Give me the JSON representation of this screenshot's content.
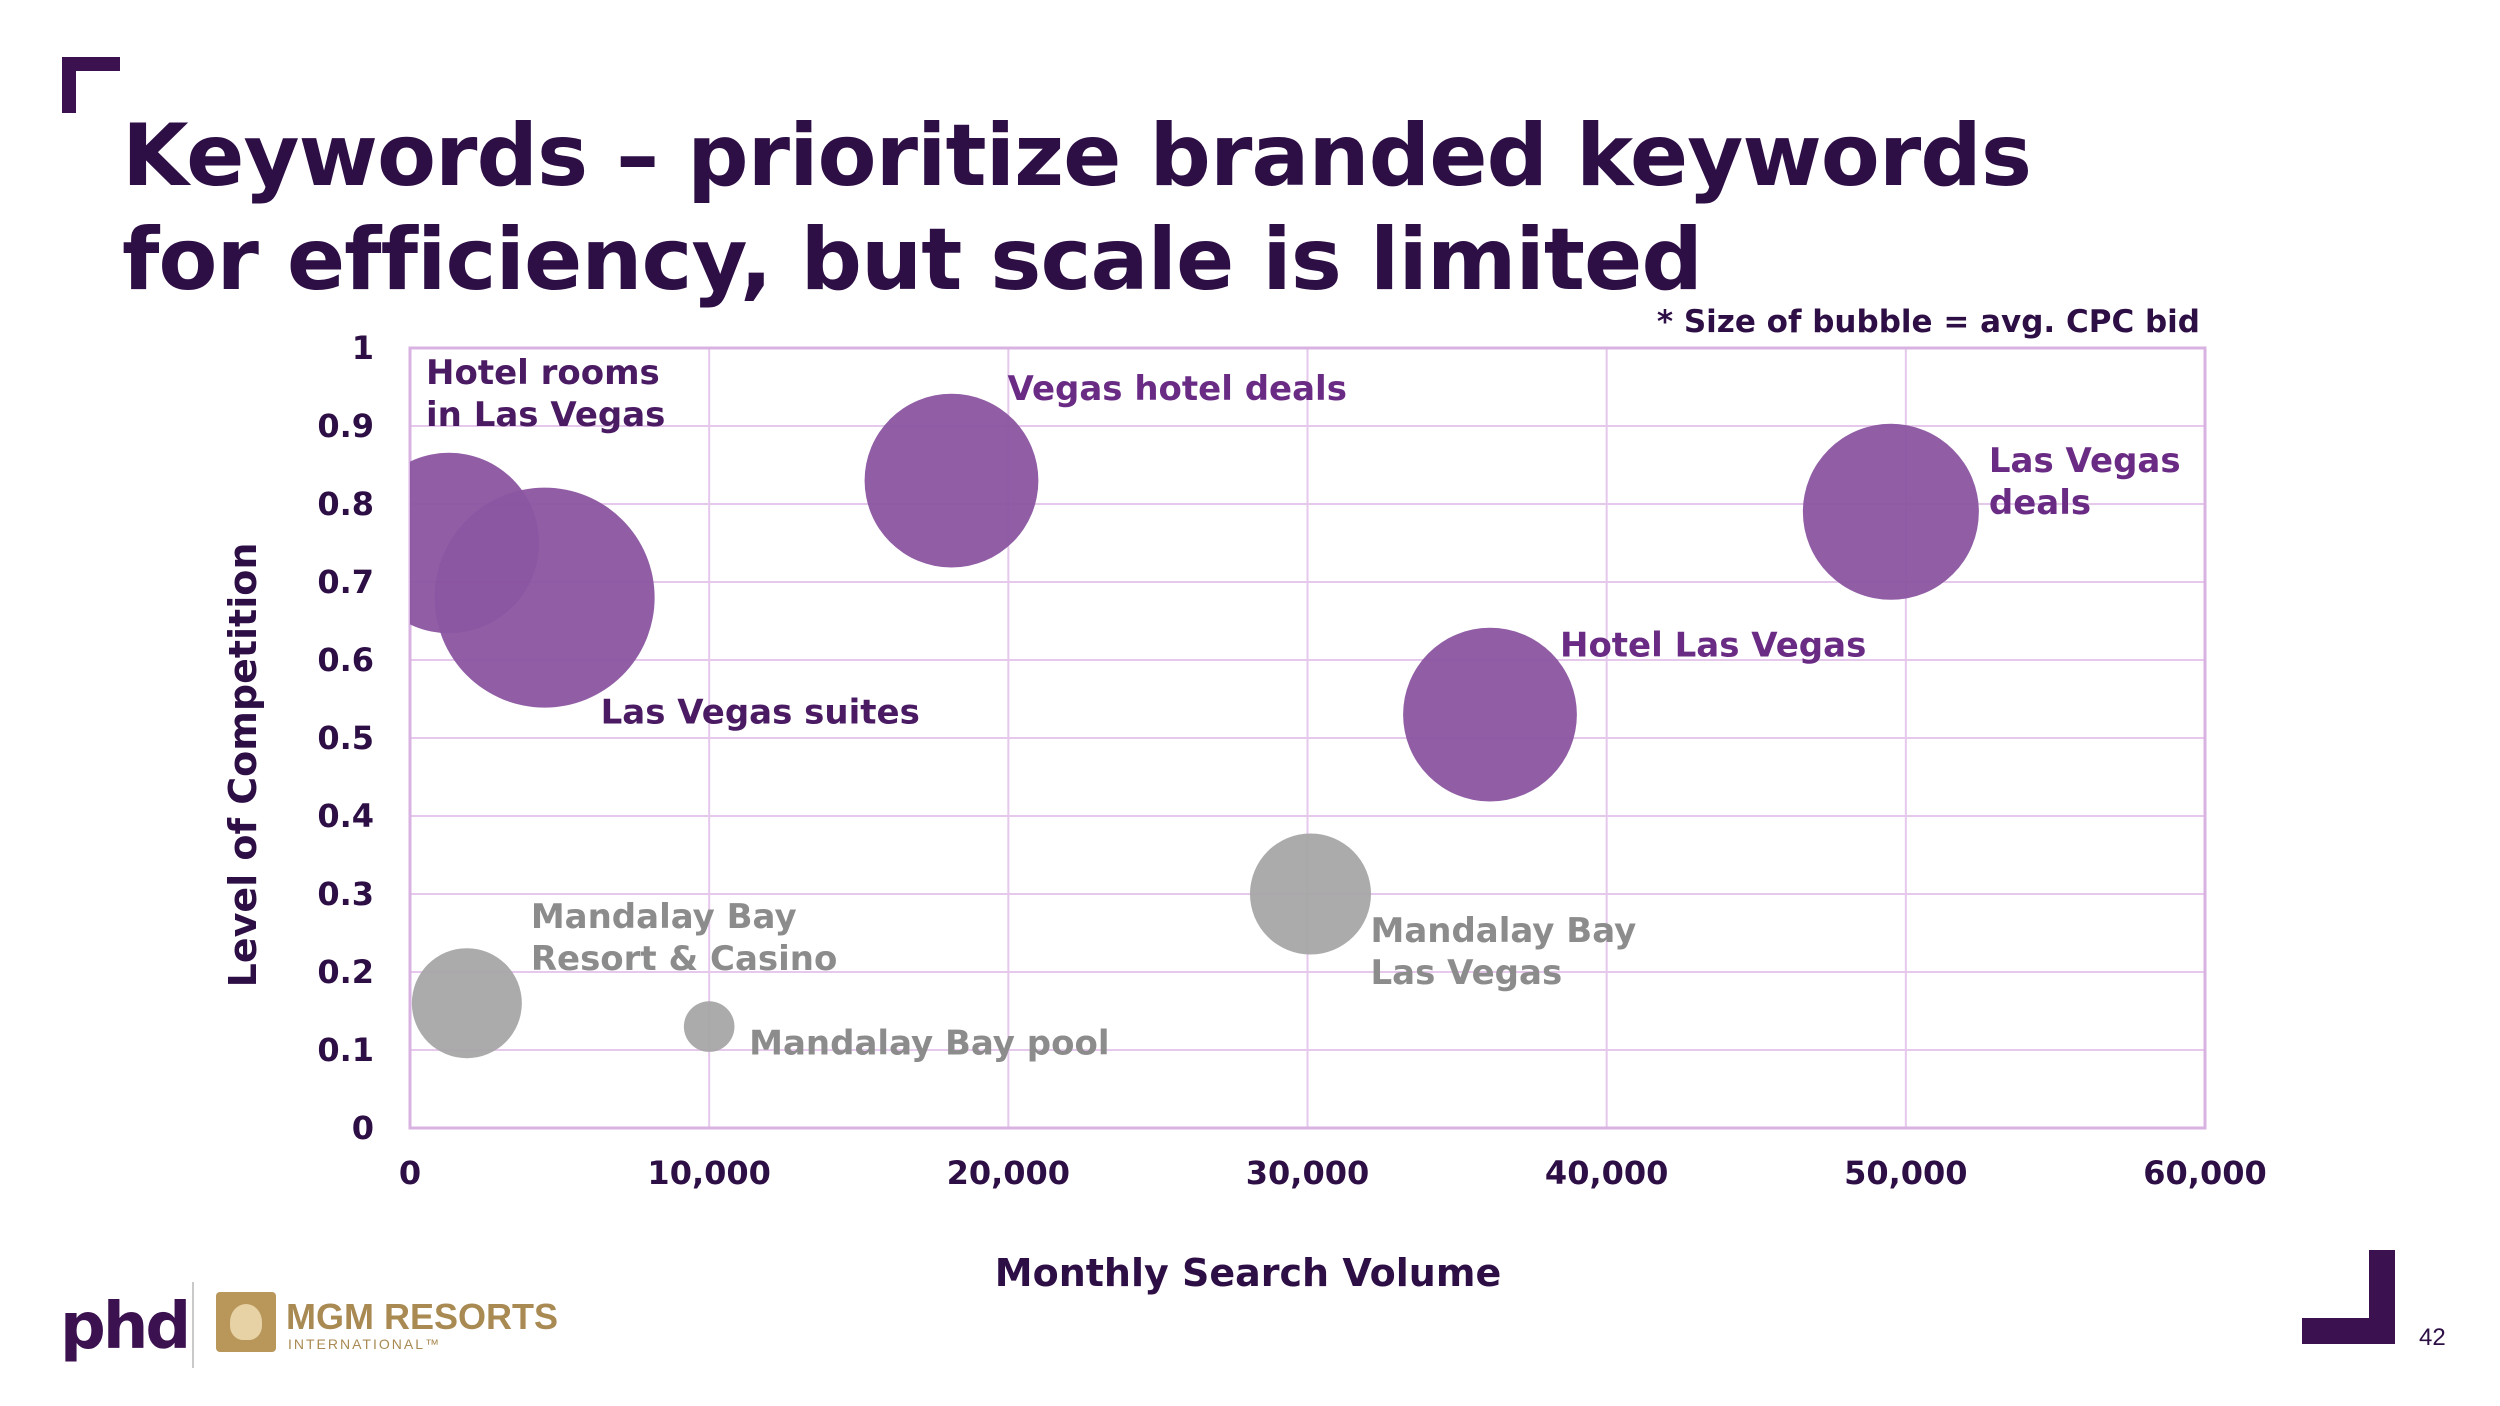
{
  "slide": {
    "title": "Keywords – prioritize branded keywords for efficiency, but scale is limited",
    "footnote": "* Size of bubble = avg. CPC bid",
    "page_number": "42",
    "logos": {
      "agency": "phd",
      "client": "MGM RESORTS",
      "client_sub": "INTERNATIONAL™"
    }
  },
  "colors": {
    "title": "#2d0e45",
    "brand_bubble": "#8b55a1",
    "brand_label": "#6a2b85",
    "nonbrand_bubble": "#a6a6a6",
    "nonbrand_label": "#8c8c8c",
    "grid": "#e6c8ec",
    "axis": "#d8b2e0"
  },
  "chart_data": {
    "type": "bubble",
    "xlabel": "Monthly Search Volume",
    "ylabel": "Level of Competition",
    "xlim": [
      0,
      60000
    ],
    "ylim": [
      0,
      1
    ],
    "x_ticks": [
      0,
      10000,
      20000,
      30000,
      40000,
      50000,
      60000
    ],
    "x_tick_labels": [
      "0",
      "10,000",
      "20,000",
      "30,000",
      "40,000",
      "50,000",
      "60,000"
    ],
    "y_ticks": [
      0,
      0.1,
      0.2,
      0.3,
      0.4,
      0.5,
      0.6,
      0.7,
      0.8,
      0.9,
      1
    ],
    "y_tick_labels": [
      "0",
      "0.1",
      "0.2",
      "0.3",
      "0.4",
      "0.5",
      "0.6",
      "0.7",
      "0.8",
      "0.9",
      "1"
    ],
    "grid": true,
    "size_encoding": "avg. CPC bid",
    "points": [
      {
        "label_lines": [
          "Hotel rooms",
          "in Las Vegas"
        ],
        "x": 1300,
        "y": 0.75,
        "size": 0.82,
        "group": "brand",
        "label_pos": "above-right"
      },
      {
        "label_lines": [
          "Las Vegas suites"
        ],
        "x": 4500,
        "y": 0.68,
        "size": 1.0,
        "group": "brand",
        "label_pos": "below-right"
      },
      {
        "label_lines": [
          "Vegas hotel deals"
        ],
        "x": 18100,
        "y": 0.83,
        "size": 0.79,
        "group": "brand",
        "label_pos": "above-right"
      },
      {
        "label_lines": [
          "Hotel Las Vegas"
        ],
        "x": 36100,
        "y": 0.53,
        "size": 0.79,
        "group": "brand",
        "label_pos": "above-right"
      },
      {
        "label_lines": [
          "Las Vegas",
          "deals"
        ],
        "x": 49500,
        "y": 0.79,
        "size": 0.8,
        "group": "brand",
        "label_pos": "right"
      },
      {
        "label_lines": [
          "Mandalay Bay",
          "Las Vegas"
        ],
        "x": 30100,
        "y": 0.3,
        "size": 0.55,
        "group": "nonbrand",
        "label_pos": "below-right"
      },
      {
        "label_lines": [
          "Mandalay Bay",
          "Resort & Casino"
        ],
        "x": 1900,
        "y": 0.16,
        "size": 0.5,
        "group": "nonbrand",
        "label_pos": "above-right"
      },
      {
        "label_lines": [
          "Mandalay Bay pool"
        ],
        "x": 10000,
        "y": 0.13,
        "size": 0.23,
        "group": "nonbrand",
        "label_pos": "right"
      }
    ]
  }
}
